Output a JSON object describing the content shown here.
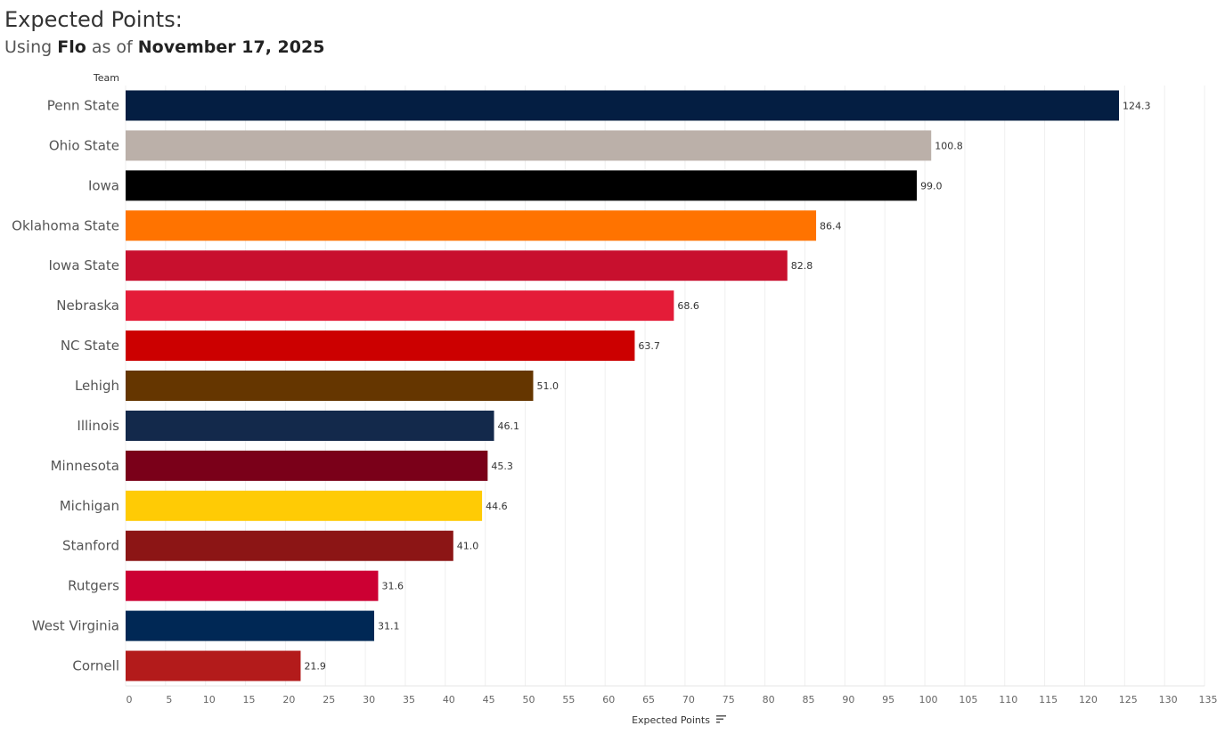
{
  "header": {
    "title": "Expected Points:",
    "subtitle_prefix": "Using",
    "subtitle_metric": "Flo",
    "subtitle_middle": "as of",
    "subtitle_date": "November 17, 2025"
  },
  "chart_data": {
    "type": "bar",
    "orientation": "horizontal",
    "ylabel": "Team",
    "xlabel": "Expected Points",
    "xlim": [
      0,
      135
    ],
    "xticks": [
      0,
      5,
      10,
      15,
      20,
      25,
      30,
      35,
      40,
      45,
      50,
      55,
      60,
      65,
      70,
      75,
      80,
      85,
      90,
      95,
      100,
      105,
      110,
      115,
      120,
      125,
      130,
      135
    ],
    "grid": true,
    "sort": "descending",
    "categories": [
      "Penn State",
      "Ohio State",
      "Iowa",
      "Oklahoma State",
      "Iowa State",
      "Nebraska",
      "NC State",
      "Lehigh",
      "Illinois",
      "Minnesota",
      "Michigan",
      "Stanford",
      "Rutgers",
      "West Virginia",
      "Cornell"
    ],
    "values": [
      124.3,
      100.8,
      99.0,
      86.4,
      82.8,
      68.6,
      63.7,
      51.0,
      46.1,
      45.3,
      44.6,
      41.0,
      31.6,
      31.1,
      21.9
    ],
    "value_labels": [
      "124.3",
      "100.8",
      "99.0",
      "86.4",
      "82.8",
      "68.6",
      "63.7",
      "51.0",
      "46.1",
      "45.3",
      "44.6",
      "41.0",
      "31.6",
      "31.1",
      "21.9"
    ],
    "colors": [
      "#041E42",
      "#BBB0A9",
      "#000000",
      "#FF7300",
      "#C8102E",
      "#E41C38",
      "#CC0000",
      "#653600",
      "#13294B",
      "#7A0019",
      "#FFCB05",
      "#8C1515",
      "#CC0033",
      "#002855",
      "#B31B1B"
    ]
  }
}
